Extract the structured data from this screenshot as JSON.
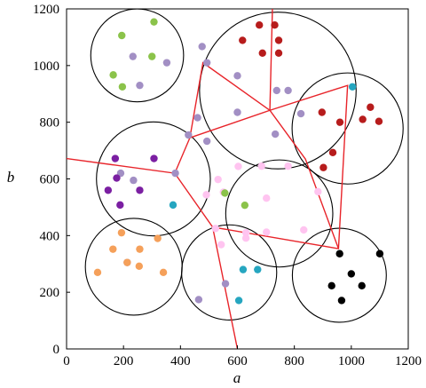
{
  "chart_data": {
    "type": "scatter",
    "title": "",
    "xlabel": "a",
    "ylabel": "b",
    "xlim": [
      0,
      1200
    ],
    "ylim": [
      0,
      1200
    ],
    "xticks": [
      0,
      200,
      400,
      600,
      800,
      1000,
      1200
    ],
    "yticks": [
      0,
      200,
      400,
      600,
      800,
      1000,
      1200
    ],
    "grid": false,
    "legend": "none",
    "series": [
      {
        "color": "#8bc34a",
        "points": [
          [
            194,
            1106
          ],
          [
            307,
            1154
          ],
          [
            300,
            1032
          ],
          [
            164,
            967
          ],
          [
            196,
            925
          ]
        ]
      },
      {
        "color": "#a28fc4",
        "points": [
          [
            233,
            1032
          ],
          [
            257,
            930
          ],
          [
            352,
            1010
          ],
          [
            476,
            1067
          ],
          [
            493,
            1010
          ],
          [
            600,
            964
          ],
          [
            738,
            912
          ],
          [
            778,
            912
          ],
          [
            460,
            816
          ],
          [
            600,
            835
          ],
          [
            823,
            830
          ],
          [
            733,
            758
          ],
          [
            428,
            755
          ],
          [
            493,
            733
          ],
          [
            190,
            620
          ],
          [
            235,
            595
          ],
          [
            382,
            620
          ],
          [
            464,
            174
          ],
          [
            558,
            230
          ],
          [
            213,
            305
          ]
        ]
      },
      {
        "color": "#b71c1c",
        "points": [
          [
            618,
            1089
          ],
          [
            677,
            1143
          ],
          [
            731,
            1143
          ],
          [
            745,
            1089
          ],
          [
            688,
            1044
          ],
          [
            745,
            1044
          ],
          [
            897,
            835
          ],
          [
            960,
            800
          ],
          [
            1040,
            810
          ],
          [
            1067,
            853
          ],
          [
            1097,
            803
          ],
          [
            935,
            693
          ],
          [
            902,
            640
          ]
        ]
      },
      {
        "color": "#26a6c0",
        "points": [
          [
            1004,
            925
          ],
          [
            374,
            508
          ],
          [
            620,
            280
          ],
          [
            671,
            280
          ],
          [
            605,
            171
          ]
        ]
      },
      {
        "color": "#7b1fa2",
        "points": [
          [
            171,
            672
          ],
          [
            307,
            672
          ],
          [
            176,
            603
          ],
          [
            146,
            560
          ],
          [
            257,
            560
          ],
          [
            188,
            508
          ]
        ]
      },
      {
        "color": "#ffc4f0",
        "points": [
          [
            532,
            598
          ],
          [
            491,
            544
          ],
          [
            551,
            553
          ],
          [
            603,
            644
          ],
          [
            685,
            645
          ],
          [
            702,
            532
          ],
          [
            778,
            645
          ],
          [
            883,
            555
          ],
          [
            630,
            410
          ],
          [
            702,
            412
          ],
          [
            833,
            420
          ],
          [
            523,
            425
          ],
          [
            543,
            368
          ],
          [
            630,
            391
          ]
        ]
      },
      {
        "color": "#8bc34a",
        "points": [
          [
            556,
            550
          ],
          [
            626,
            507
          ]
        ]
      },
      {
        "color": "#f5a05a",
        "points": [
          [
            193,
            410
          ],
          [
            320,
            390
          ],
          [
            163,
            352
          ],
          [
            257,
            352
          ],
          [
            109,
            270
          ],
          [
            213,
            305
          ],
          [
            255,
            292
          ],
          [
            340,
            270
          ]
        ]
      },
      {
        "color": "#000000",
        "points": [
          [
            959,
            336
          ],
          [
            1100,
            336
          ],
          [
            1000,
            265
          ],
          [
            931,
            223
          ],
          [
            1037,
            223
          ],
          [
            966,
            171
          ]
        ]
      }
    ],
    "circles": [
      {
        "cx": 248,
        "cy": 1036,
        "r": 163
      },
      {
        "cx": 742,
        "cy": 912,
        "r": 275
      },
      {
        "cx": 987,
        "cy": 778,
        "r": 195
      },
      {
        "cx": 305,
        "cy": 600,
        "r": 200
      },
      {
        "cx": 747,
        "cy": 478,
        "r": 188
      },
      {
        "cx": 236,
        "cy": 290,
        "r": 170
      },
      {
        "cx": 571,
        "cy": 270,
        "r": 167
      },
      {
        "cx": 958,
        "cy": 260,
        "r": 165
      }
    ],
    "red_lines": [
      {
        "points": [
          [
            0,
            672
          ],
          [
            380,
            620
          ],
          [
            513,
            430
          ],
          [
            600,
            0
          ]
        ]
      },
      {
        "points": [
          [
            380,
            620
          ],
          [
            433,
            745
          ],
          [
            479,
            1010
          ],
          [
            714,
            842
          ],
          [
            723,
            1200
          ]
        ]
      },
      {
        "points": [
          [
            433,
            745
          ],
          [
            714,
            842
          ],
          [
            987,
            930
          ],
          [
            955,
            354
          ],
          [
            513,
            430
          ]
        ]
      },
      {
        "points": [
          [
            714,
            842
          ],
          [
            839,
            670
          ],
          [
            955,
            354
          ]
        ]
      }
    ]
  }
}
